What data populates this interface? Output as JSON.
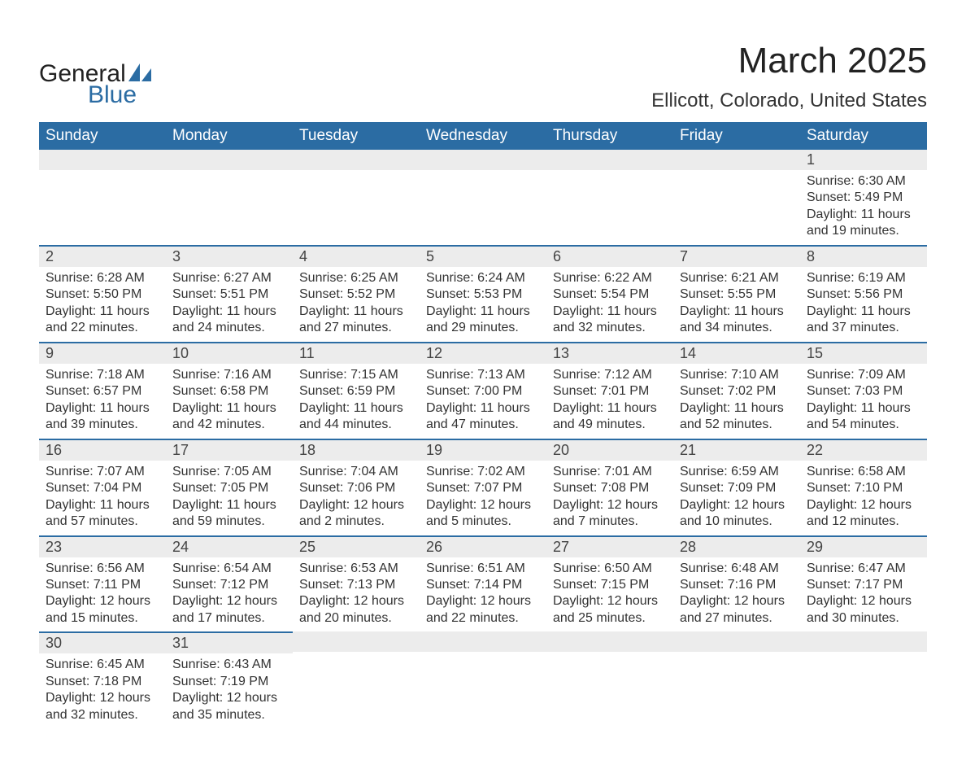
{
  "logo": {
    "text1": "General",
    "text2": "Blue",
    "iconColor": "#2b6ca3"
  },
  "title": "March 2025",
  "location": "Ellicott, Colorado, United States",
  "colors": {
    "headerBg": "#2b6ca3",
    "headerText": "#ffffff",
    "dayNumBg": "#ececec",
    "rowBorder": "#2b6ca3",
    "text": "#333333",
    "background": "#ffffff"
  },
  "weekdays": [
    "Sunday",
    "Monday",
    "Tuesday",
    "Wednesday",
    "Thursday",
    "Friday",
    "Saturday"
  ],
  "weeks": [
    [
      null,
      null,
      null,
      null,
      null,
      null,
      {
        "n": "1",
        "sr": "Sunrise: 6:30 AM",
        "ss": "Sunset: 5:49 PM",
        "dl": "Daylight: 11 hours and 19 minutes."
      }
    ],
    [
      {
        "n": "2",
        "sr": "Sunrise: 6:28 AM",
        "ss": "Sunset: 5:50 PM",
        "dl": "Daylight: 11 hours and 22 minutes."
      },
      {
        "n": "3",
        "sr": "Sunrise: 6:27 AM",
        "ss": "Sunset: 5:51 PM",
        "dl": "Daylight: 11 hours and 24 minutes."
      },
      {
        "n": "4",
        "sr": "Sunrise: 6:25 AM",
        "ss": "Sunset: 5:52 PM",
        "dl": "Daylight: 11 hours and 27 minutes."
      },
      {
        "n": "5",
        "sr": "Sunrise: 6:24 AM",
        "ss": "Sunset: 5:53 PM",
        "dl": "Daylight: 11 hours and 29 minutes."
      },
      {
        "n": "6",
        "sr": "Sunrise: 6:22 AM",
        "ss": "Sunset: 5:54 PM",
        "dl": "Daylight: 11 hours and 32 minutes."
      },
      {
        "n": "7",
        "sr": "Sunrise: 6:21 AM",
        "ss": "Sunset: 5:55 PM",
        "dl": "Daylight: 11 hours and 34 minutes."
      },
      {
        "n": "8",
        "sr": "Sunrise: 6:19 AM",
        "ss": "Sunset: 5:56 PM",
        "dl": "Daylight: 11 hours and 37 minutes."
      }
    ],
    [
      {
        "n": "9",
        "sr": "Sunrise: 7:18 AM",
        "ss": "Sunset: 6:57 PM",
        "dl": "Daylight: 11 hours and 39 minutes."
      },
      {
        "n": "10",
        "sr": "Sunrise: 7:16 AM",
        "ss": "Sunset: 6:58 PM",
        "dl": "Daylight: 11 hours and 42 minutes."
      },
      {
        "n": "11",
        "sr": "Sunrise: 7:15 AM",
        "ss": "Sunset: 6:59 PM",
        "dl": "Daylight: 11 hours and 44 minutes."
      },
      {
        "n": "12",
        "sr": "Sunrise: 7:13 AM",
        "ss": "Sunset: 7:00 PM",
        "dl": "Daylight: 11 hours and 47 minutes."
      },
      {
        "n": "13",
        "sr": "Sunrise: 7:12 AM",
        "ss": "Sunset: 7:01 PM",
        "dl": "Daylight: 11 hours and 49 minutes."
      },
      {
        "n": "14",
        "sr": "Sunrise: 7:10 AM",
        "ss": "Sunset: 7:02 PM",
        "dl": "Daylight: 11 hours and 52 minutes."
      },
      {
        "n": "15",
        "sr": "Sunrise: 7:09 AM",
        "ss": "Sunset: 7:03 PM",
        "dl": "Daylight: 11 hours and 54 minutes."
      }
    ],
    [
      {
        "n": "16",
        "sr": "Sunrise: 7:07 AM",
        "ss": "Sunset: 7:04 PM",
        "dl": "Daylight: 11 hours and 57 minutes."
      },
      {
        "n": "17",
        "sr": "Sunrise: 7:05 AM",
        "ss": "Sunset: 7:05 PM",
        "dl": "Daylight: 11 hours and 59 minutes."
      },
      {
        "n": "18",
        "sr": "Sunrise: 7:04 AM",
        "ss": "Sunset: 7:06 PM",
        "dl": "Daylight: 12 hours and 2 minutes."
      },
      {
        "n": "19",
        "sr": "Sunrise: 7:02 AM",
        "ss": "Sunset: 7:07 PM",
        "dl": "Daylight: 12 hours and 5 minutes."
      },
      {
        "n": "20",
        "sr": "Sunrise: 7:01 AM",
        "ss": "Sunset: 7:08 PM",
        "dl": "Daylight: 12 hours and 7 minutes."
      },
      {
        "n": "21",
        "sr": "Sunrise: 6:59 AM",
        "ss": "Sunset: 7:09 PM",
        "dl": "Daylight: 12 hours and 10 minutes."
      },
      {
        "n": "22",
        "sr": "Sunrise: 6:58 AM",
        "ss": "Sunset: 7:10 PM",
        "dl": "Daylight: 12 hours and 12 minutes."
      }
    ],
    [
      {
        "n": "23",
        "sr": "Sunrise: 6:56 AM",
        "ss": "Sunset: 7:11 PM",
        "dl": "Daylight: 12 hours and 15 minutes."
      },
      {
        "n": "24",
        "sr": "Sunrise: 6:54 AM",
        "ss": "Sunset: 7:12 PM",
        "dl": "Daylight: 12 hours and 17 minutes."
      },
      {
        "n": "25",
        "sr": "Sunrise: 6:53 AM",
        "ss": "Sunset: 7:13 PM",
        "dl": "Daylight: 12 hours and 20 minutes."
      },
      {
        "n": "26",
        "sr": "Sunrise: 6:51 AM",
        "ss": "Sunset: 7:14 PM",
        "dl": "Daylight: 12 hours and 22 minutes."
      },
      {
        "n": "27",
        "sr": "Sunrise: 6:50 AM",
        "ss": "Sunset: 7:15 PM",
        "dl": "Daylight: 12 hours and 25 minutes."
      },
      {
        "n": "28",
        "sr": "Sunrise: 6:48 AM",
        "ss": "Sunset: 7:16 PM",
        "dl": "Daylight: 12 hours and 27 minutes."
      },
      {
        "n": "29",
        "sr": "Sunrise: 6:47 AM",
        "ss": "Sunset: 7:17 PM",
        "dl": "Daylight: 12 hours and 30 minutes."
      }
    ],
    [
      {
        "n": "30",
        "sr": "Sunrise: 6:45 AM",
        "ss": "Sunset: 7:18 PM",
        "dl": "Daylight: 12 hours and 32 minutes."
      },
      {
        "n": "31",
        "sr": "Sunrise: 6:43 AM",
        "ss": "Sunset: 7:19 PM",
        "dl": "Daylight: 12 hours and 35 minutes."
      },
      null,
      null,
      null,
      null,
      null
    ]
  ]
}
